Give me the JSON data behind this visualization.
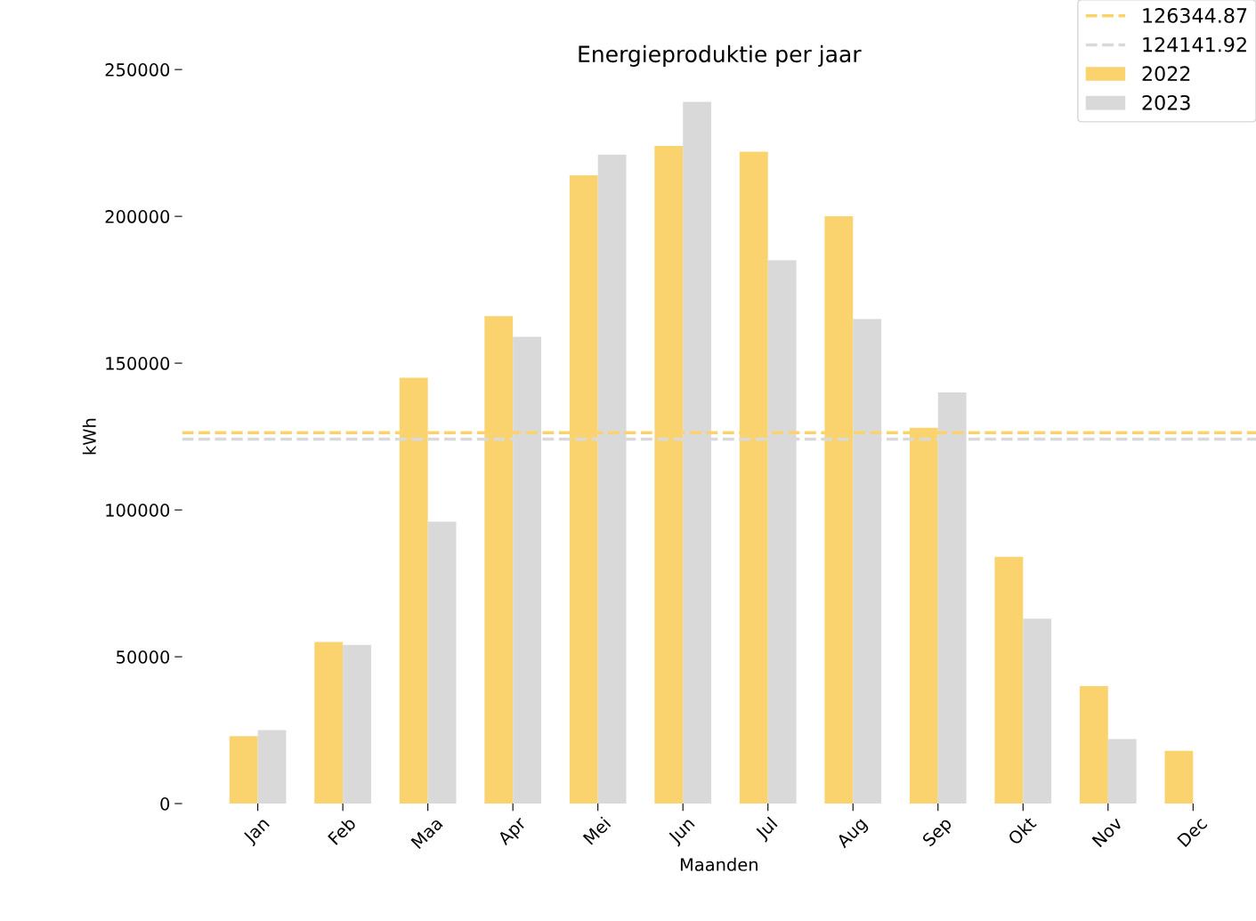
{
  "chart_data": {
    "type": "bar",
    "title": "Energieproduktie per jaar",
    "xlabel": "Maanden",
    "ylabel": "kWh",
    "categories": [
      "Jan",
      "Feb",
      "Maa",
      "Apr",
      "Mei",
      "Jun",
      "Jul",
      "Aug",
      "Sep",
      "Okt",
      "Nov",
      "Dec"
    ],
    "series": [
      {
        "name": "2022",
        "color": "#fad36e",
        "values": [
          23000,
          55000,
          145000,
          166000,
          214000,
          224000,
          222000,
          200000,
          128000,
          84000,
          40000,
          18000
        ]
      },
      {
        "name": "2023",
        "color": "#d9d9d9",
        "values": [
          25000,
          54000,
          96000,
          159000,
          221000,
          239000,
          185000,
          165000,
          140000,
          63000,
          22000,
          null
        ]
      }
    ],
    "ylim": [
      0,
      250000
    ],
    "yticks": [
      0,
      50000,
      100000,
      150000,
      200000,
      250000
    ],
    "ref_lines": [
      {
        "axis": "y",
        "value": 126344.87,
        "label": "126344.87",
        "color": "#fad36e",
        "line_style": "dashed"
      },
      {
        "axis": "y",
        "value": 124141.92,
        "label": "124141.92",
        "color": "#d9d9d9",
        "line_style": "dashed"
      }
    ],
    "grid": false,
    "legend": "top right"
  }
}
